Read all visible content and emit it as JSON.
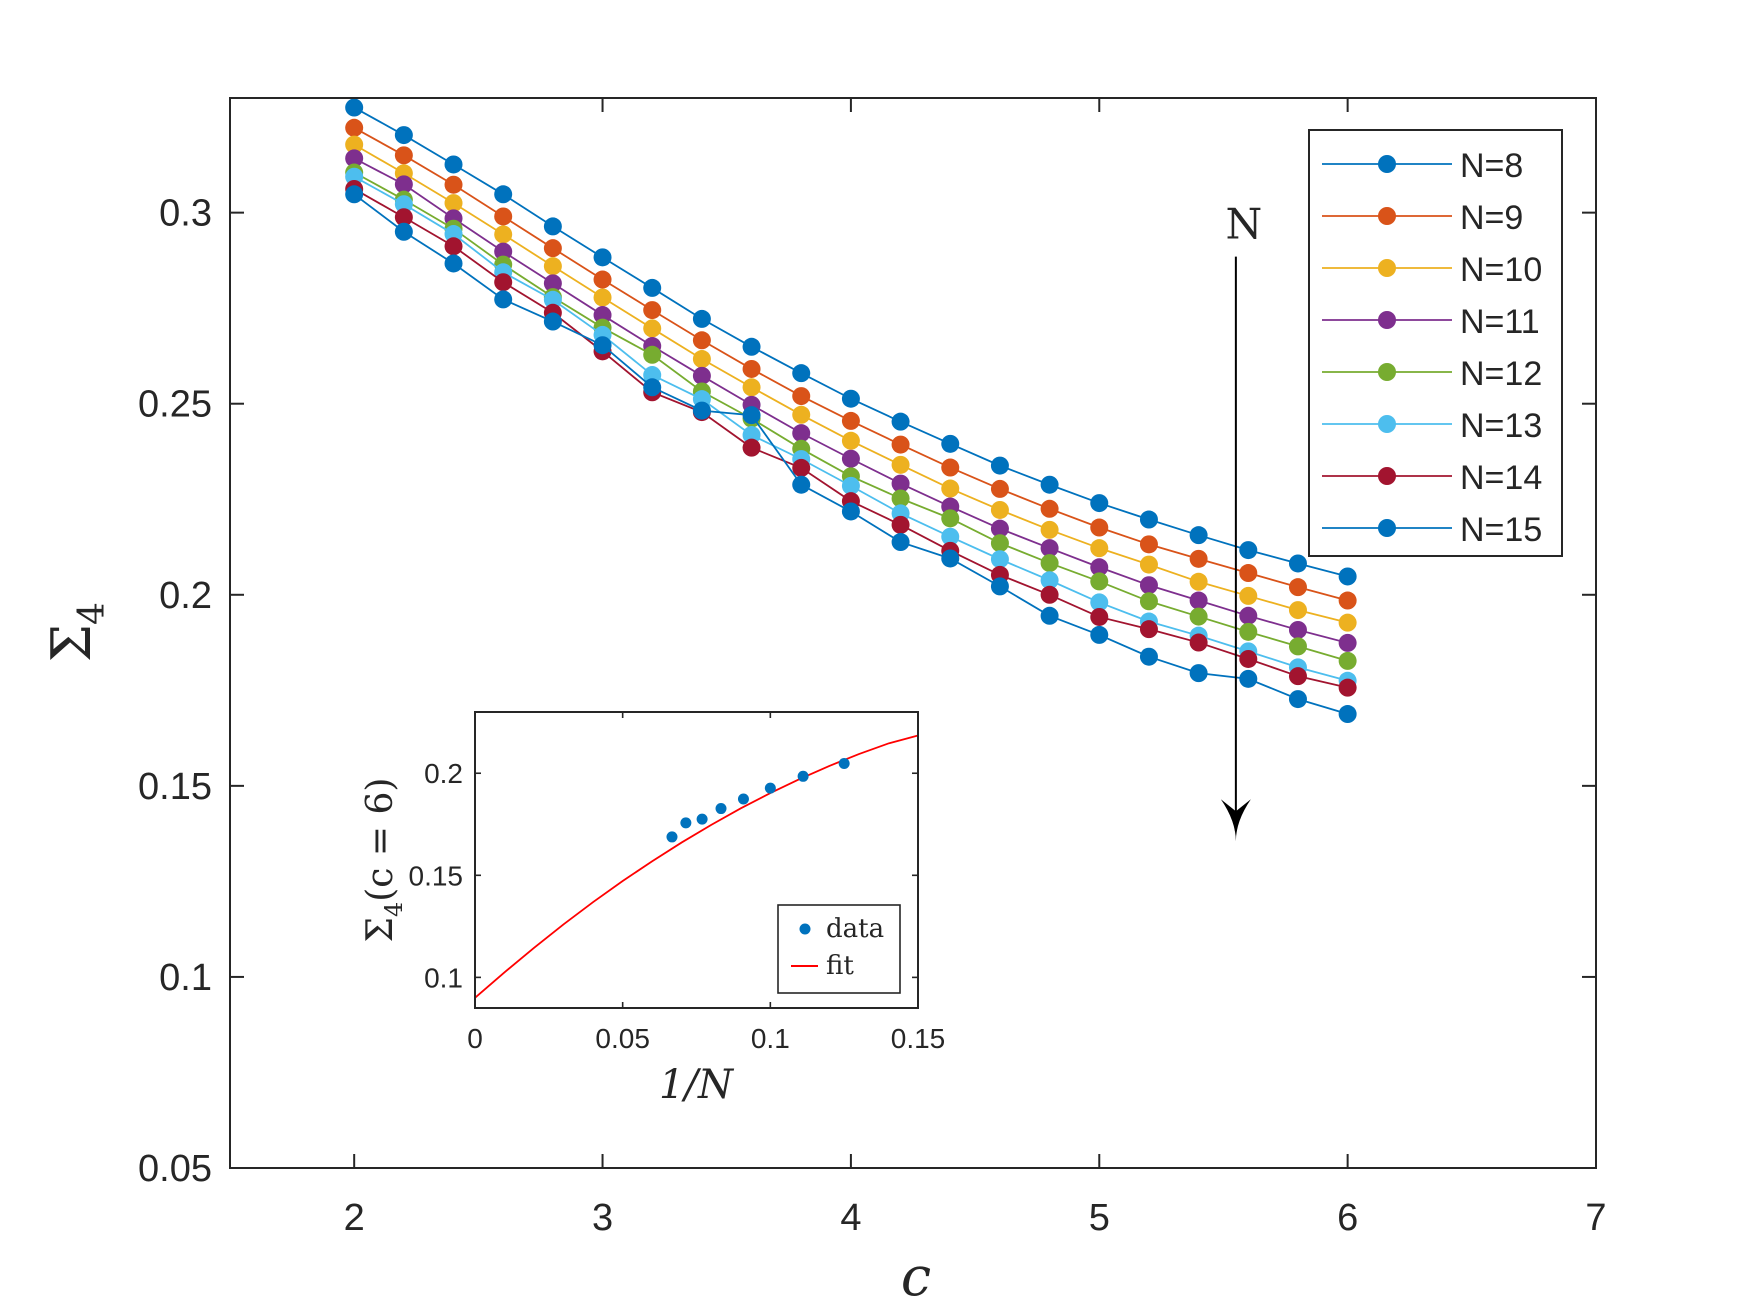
{
  "chart_data": [
    {
      "type": "line",
      "xlabel": "c",
      "ylabel": "Σ",
      "ylabel_sub": "4",
      "xlim": [
        1.5,
        7
      ],
      "ylim": [
        0.05,
        0.33
      ],
      "xticks": [
        2,
        3,
        4,
        5,
        6,
        7
      ],
      "xtick_labels": [
        "2",
        "3",
        "4",
        "5",
        "6",
        "7"
      ],
      "yticks": [
        0.05,
        0.1,
        0.15,
        0.2,
        0.25,
        0.3
      ],
      "ytick_labels": [
        "0.05",
        "0.1",
        "0.15",
        "0.2",
        "0.25",
        "0.3"
      ],
      "x": [
        2.0,
        2.2,
        2.4,
        2.6,
        2.8,
        3.0,
        3.2,
        3.4,
        3.6,
        3.8,
        4.0,
        4.2,
        4.4,
        4.6,
        4.8,
        5.0,
        5.2,
        5.4,
        5.6,
        5.8,
        6.0
      ],
      "legend_position": "top-right",
      "series": [
        {
          "name": "N=8",
          "color": "#0072BD",
          "values": [
            0.3275,
            0.3203,
            0.3126,
            0.3048,
            0.2964,
            0.2883,
            0.2803,
            0.2722,
            0.2649,
            0.258,
            0.2513,
            0.2453,
            0.2395,
            0.2338,
            0.2288,
            0.224,
            0.2197,
            0.2156,
            0.2117,
            0.2082,
            0.2048
          ]
        },
        {
          "name": "N=9",
          "color": "#D95319",
          "values": [
            0.3222,
            0.315,
            0.3073,
            0.299,
            0.2907,
            0.2825,
            0.2745,
            0.2666,
            0.2591,
            0.252,
            0.2455,
            0.2393,
            0.2333,
            0.2277,
            0.2225,
            0.2176,
            0.2132,
            0.2094,
            0.2057,
            0.202,
            0.1985
          ]
        },
        {
          "name": "N=10",
          "color": "#EDB120",
          "values": [
            0.3178,
            0.3103,
            0.3025,
            0.2943,
            0.286,
            0.2778,
            0.2697,
            0.2617,
            0.2543,
            0.2471,
            0.2403,
            0.234,
            0.2278,
            0.2222,
            0.217,
            0.2122,
            0.2079,
            0.2034,
            0.1997,
            0.196,
            0.1927
          ]
        },
        {
          "name": "N=11",
          "color": "#7E2F8E",
          "values": [
            0.3142,
            0.3074,
            0.2985,
            0.2898,
            0.2815,
            0.2732,
            0.2651,
            0.2573,
            0.2497,
            0.2423,
            0.2356,
            0.2291,
            0.2231,
            0.2173,
            0.2122,
            0.2072,
            0.2025,
            0.1985,
            0.1945,
            0.1908,
            0.1874
          ]
        },
        {
          "name": "N=12",
          "color": "#77AC30",
          "values": [
            0.3105,
            0.3034,
            0.2958,
            0.2864,
            0.2779,
            0.2699,
            0.2628,
            0.2532,
            0.2461,
            0.2382,
            0.231,
            0.2252,
            0.22,
            0.2135,
            0.2083,
            0.2035,
            0.1983,
            0.1943,
            0.1903,
            0.1865,
            0.1827
          ]
        },
        {
          "name": "N=13",
          "color": "#4DBEEE",
          "values": [
            0.3094,
            0.3022,
            0.2944,
            0.2844,
            0.2772,
            0.268,
            0.2575,
            0.2512,
            0.2418,
            0.2355,
            0.2285,
            0.2213,
            0.2152,
            0.2093,
            0.2038,
            0.198,
            0.193,
            0.1893,
            0.1852,
            0.181,
            0.1775
          ]
        },
        {
          "name": "N=14",
          "color": "#A2142F",
          "values": [
            0.3062,
            0.2988,
            0.2912,
            0.2818,
            0.2738,
            0.2637,
            0.253,
            0.2478,
            0.2385,
            0.2332,
            0.2245,
            0.2183,
            0.2115,
            0.2052,
            0.2,
            0.1942,
            0.191,
            0.1875,
            0.1832,
            0.1787,
            0.1757
          ]
        },
        {
          "name": "N=15",
          "color": "#0072BD",
          "values": [
            0.3048,
            0.295,
            0.2867,
            0.2773,
            0.2715,
            0.2653,
            0.2543,
            0.2482,
            0.247,
            0.2288,
            0.2218,
            0.2138,
            0.2095,
            0.2022,
            0.1945,
            0.1895,
            0.1838,
            0.1795,
            0.178,
            0.1727,
            0.1688
          ]
        }
      ],
      "annotation": {
        "text": "N",
        "arrow_x": 5.55,
        "arrow_from_y": 0.2885,
        "arrow_to_y": 0.1355
      }
    },
    {
      "type": "scatter",
      "inset": true,
      "xlabel": "1/N",
      "ylabel": "Σ",
      "ylabel_sub": "4",
      "ylabel_suffix": "(c = 6)",
      "xlim": [
        0,
        0.15
      ],
      "ylim": [
        0.085,
        0.23
      ],
      "xticks": [
        0,
        0.05,
        0.1,
        0.15
      ],
      "xtick_labels": [
        "0",
        "0.05",
        "0.1",
        "0.15"
      ],
      "yticks": [
        0.1,
        0.15,
        0.2
      ],
      "ytick_labels": [
        "0.1",
        "0.15",
        "0.2"
      ],
      "legend_position": "bottom-right",
      "series": [
        {
          "name": "data",
          "color": "#0072BD",
          "x": [
            0.0667,
            0.0714,
            0.0769,
            0.0833,
            0.0909,
            0.1,
            0.1111,
            0.125
          ],
          "values": [
            0.1688,
            0.1757,
            0.1775,
            0.1827,
            0.1874,
            0.1927,
            0.1985,
            0.2048
          ]
        },
        {
          "name": "fit",
          "color": "#FF0000",
          "x": [
            0,
            0.01,
            0.02,
            0.03,
            0.04,
            0.05,
            0.06,
            0.07,
            0.08,
            0.09,
            0.1,
            0.11,
            0.12,
            0.13,
            0.14,
            0.15
          ],
          "values": [
            0.09,
            0.1025,
            0.1145,
            0.126,
            0.1369,
            0.1472,
            0.1569,
            0.1661,
            0.1747,
            0.1828,
            0.1903,
            0.1972,
            0.2036,
            0.2094,
            0.2146,
            0.2185
          ]
        }
      ]
    }
  ]
}
